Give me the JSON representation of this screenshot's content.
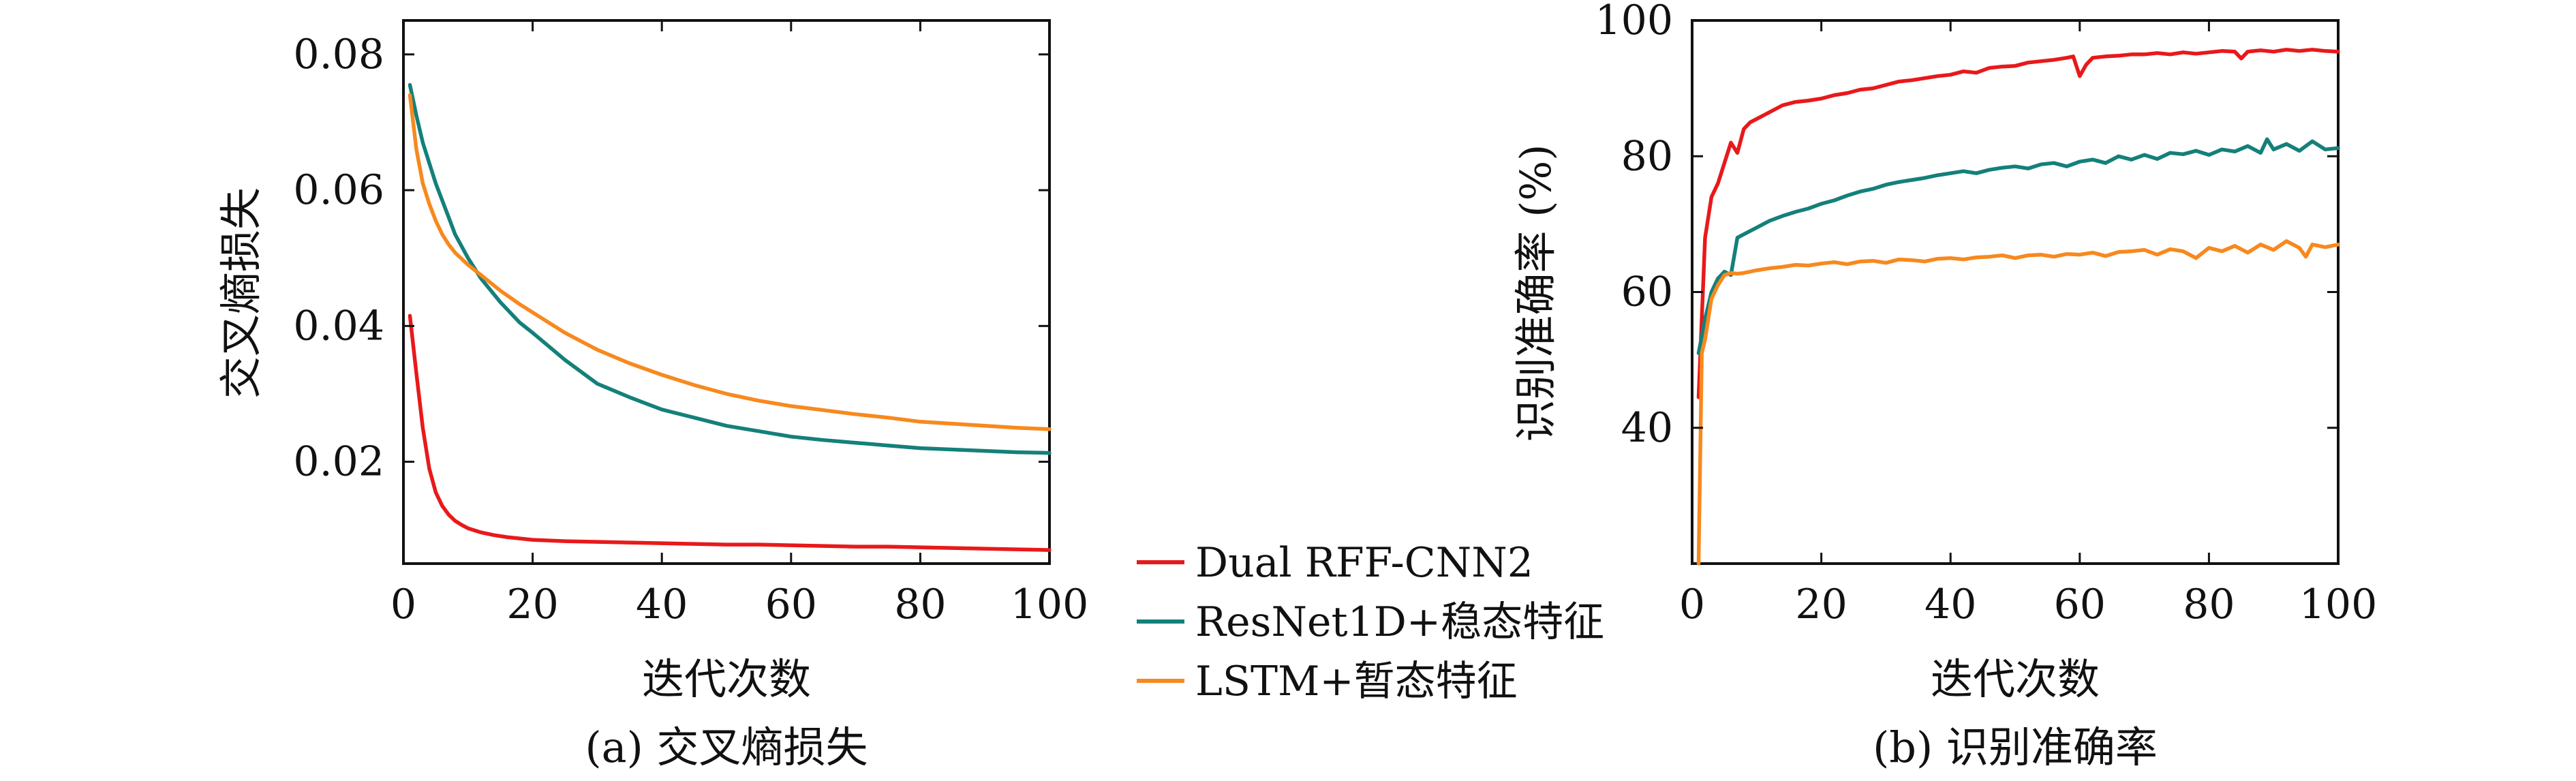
{
  "legend": {
    "items": [
      {
        "label": "Dual RFF-CNN2",
        "color": "#e8191b"
      },
      {
        "label": "ResNet1D+稳态特征",
        "color": "#14807a"
      },
      {
        "label": "LSTM+暂态特征",
        "color": "#f7891e"
      }
    ]
  },
  "chart_data": [
    {
      "type": "line",
      "caption": "(a) 交叉熵损失",
      "xlabel": "迭代次数",
      "ylabel": "交叉熵损失",
      "xlim": [
        0,
        100
      ],
      "ylim": [
        0.005,
        0.085
      ],
      "xticks": [
        0,
        20,
        40,
        60,
        80,
        100
      ],
      "xtick_labels": [
        "0",
        "20",
        "40",
        "60",
        "80",
        "100"
      ],
      "yticks": [
        0.02,
        0.04,
        0.06,
        0.08
      ],
      "ytick_labels": [
        "0.02",
        "0.04",
        "0.06",
        "0.08"
      ],
      "grid": false,
      "series": [
        {
          "name": "Dual RFF-CNN2",
          "color": "#e8191b",
          "x": [
            1,
            2,
            3,
            4,
            5,
            6,
            7,
            8,
            9,
            10,
            12,
            14,
            16,
            18,
            20,
            25,
            30,
            35,
            40,
            45,
            50,
            55,
            60,
            65,
            70,
            75,
            80,
            85,
            90,
            95,
            100
          ],
          "y": [
            0.0415,
            0.033,
            0.025,
            0.019,
            0.0155,
            0.0135,
            0.0122,
            0.0113,
            0.0107,
            0.0102,
            0.0096,
            0.0092,
            0.0089,
            0.0087,
            0.0085,
            0.0083,
            0.0082,
            0.0081,
            0.008,
            0.0079,
            0.0078,
            0.0078,
            0.0077,
            0.0076,
            0.0075,
            0.0075,
            0.0074,
            0.0073,
            0.0072,
            0.0071,
            0.007
          ]
        },
        {
          "name": "ResNet1D+稳态特征",
          "color": "#14807a",
          "x": [
            1,
            2,
            3,
            4,
            5,
            6,
            7,
            8,
            10,
            12,
            15,
            18,
            20,
            25,
            30,
            35,
            40,
            45,
            50,
            55,
            60,
            65,
            70,
            75,
            80,
            85,
            90,
            95,
            100
          ],
          "y": [
            0.0755,
            0.071,
            0.067,
            0.064,
            0.061,
            0.0585,
            0.056,
            0.0535,
            0.05,
            0.047,
            0.0435,
            0.0405,
            0.039,
            0.035,
            0.0315,
            0.0295,
            0.0277,
            0.0265,
            0.0253,
            0.0245,
            0.0237,
            0.0232,
            0.0228,
            0.0224,
            0.022,
            0.0218,
            0.0216,
            0.0214,
            0.0213
          ]
        },
        {
          "name": "LSTM+暂态特征",
          "color": "#f7891e",
          "x": [
            1,
            2,
            3,
            4,
            5,
            6,
            7,
            8,
            10,
            12,
            15,
            18,
            20,
            25,
            30,
            35,
            40,
            45,
            50,
            55,
            60,
            65,
            70,
            75,
            80,
            85,
            90,
            95,
            100
          ],
          "y": [
            0.074,
            0.066,
            0.061,
            0.058,
            0.0555,
            0.0535,
            0.052,
            0.0508,
            0.049,
            0.0475,
            0.0452,
            0.0432,
            0.042,
            0.039,
            0.0365,
            0.0345,
            0.0328,
            0.0313,
            0.03,
            0.029,
            0.0282,
            0.0276,
            0.027,
            0.0265,
            0.0259,
            0.0256,
            0.0253,
            0.025,
            0.0248
          ]
        }
      ]
    },
    {
      "type": "line",
      "caption": "(b) 识别准确率",
      "xlabel": "迭代次数",
      "ylabel": "识别准确率 (%)",
      "xlim": [
        0,
        100
      ],
      "ylim": [
        20,
        100
      ],
      "xticks": [
        0,
        20,
        40,
        60,
        80,
        100
      ],
      "xtick_labels": [
        "0",
        "20",
        "40",
        "60",
        "80",
        "100"
      ],
      "yticks": [
        40,
        60,
        80,
        100
      ],
      "ytick_labels": [
        "40",
        "60",
        "80",
        "100"
      ],
      "grid": false,
      "series": [
        {
          "name": "Dual RFF-CNN2",
          "color": "#e8191b",
          "x": [
            1,
            2,
            3,
            4,
            5,
            6,
            7,
            8,
            9,
            10,
            12,
            14,
            16,
            18,
            20,
            22,
            24,
            26,
            28,
            30,
            32,
            34,
            36,
            38,
            40,
            42,
            44,
            46,
            48,
            50,
            52,
            54,
            56,
            58,
            59,
            60,
            61,
            62,
            64,
            66,
            68,
            70,
            72,
            74,
            76,
            78,
            80,
            82,
            84,
            85,
            86,
            88,
            90,
            92,
            94,
            96,
            98,
            100
          ],
          "y": [
            44.5,
            68,
            74,
            76,
            79,
            82,
            80.5,
            84,
            85,
            85.5,
            86.5,
            87.5,
            88,
            88.2,
            88.5,
            89,
            89.3,
            89.8,
            90,
            90.5,
            91,
            91.2,
            91.5,
            91.8,
            92,
            92.5,
            92.3,
            93,
            93.2,
            93.3,
            93.8,
            94,
            94.2,
            94.5,
            94.7,
            91.8,
            93.5,
            94.5,
            94.7,
            94.8,
            95,
            95,
            95.2,
            95,
            95.3,
            95.1,
            95.3,
            95.5,
            95.4,
            94.4,
            95.4,
            95.6,
            95.4,
            95.7,
            95.5,
            95.7,
            95.5,
            95.4
          ]
        },
        {
          "name": "ResNet1D+稳态特征",
          "color": "#14807a",
          "x": [
            1,
            2,
            3,
            4,
            5,
            6,
            7,
            8,
            10,
            12,
            14,
            16,
            18,
            20,
            22,
            24,
            26,
            28,
            30,
            32,
            34,
            36,
            38,
            40,
            42,
            44,
            46,
            48,
            50,
            52,
            54,
            56,
            58,
            60,
            62,
            64,
            66,
            68,
            70,
            72,
            74,
            76,
            78,
            80,
            82,
            84,
            86,
            88,
            89,
            90,
            92,
            94,
            96,
            98,
            100
          ],
          "y": [
            51,
            56,
            60,
            62,
            63,
            62.5,
            68,
            68.5,
            69.5,
            70.5,
            71.2,
            71.8,
            72.3,
            73,
            73.5,
            74.2,
            74.8,
            75.2,
            75.8,
            76.2,
            76.5,
            76.8,
            77.2,
            77.5,
            77.8,
            77.5,
            78,
            78.3,
            78.5,
            78.2,
            78.8,
            79,
            78.5,
            79.2,
            79.5,
            79,
            80,
            79.5,
            80.2,
            79.6,
            80.5,
            80.3,
            80.8,
            80.2,
            81,
            80.7,
            81.5,
            80.5,
            82.5,
            81,
            81.8,
            80.8,
            82.2,
            81,
            81.2
          ]
        },
        {
          "name": "LSTM+暂态特征",
          "color": "#f7891e",
          "x": [
            1,
            1.5,
            2,
            3,
            4,
            5,
            6,
            7,
            8,
            10,
            12,
            14,
            16,
            18,
            20,
            22,
            24,
            26,
            28,
            30,
            32,
            34,
            36,
            38,
            40,
            42,
            44,
            46,
            48,
            50,
            52,
            54,
            56,
            58,
            60,
            62,
            64,
            66,
            68,
            70,
            72,
            74,
            76,
            78,
            80,
            82,
            84,
            86,
            88,
            90,
            92,
            94,
            95,
            96,
            98,
            100
          ],
          "y": [
            20,
            51,
            53,
            59,
            61,
            62.5,
            62.8,
            62.7,
            62.8,
            63.2,
            63.5,
            63.7,
            64,
            63.9,
            64.2,
            64.4,
            64.1,
            64.5,
            64.6,
            64.3,
            64.8,
            64.7,
            64.5,
            64.9,
            65,
            64.8,
            65.1,
            65.2,
            65.4,
            65,
            65.4,
            65.5,
            65.2,
            65.6,
            65.5,
            65.8,
            65.3,
            65.9,
            66,
            66.2,
            65.5,
            66.3,
            66,
            65,
            66.5,
            66,
            66.8,
            65.8,
            67,
            66.2,
            67.5,
            66.5,
            65.2,
            67,
            66.6,
            67
          ]
        }
      ]
    }
  ]
}
